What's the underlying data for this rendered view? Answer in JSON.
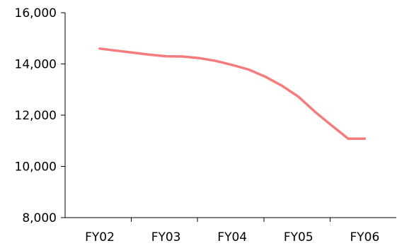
{
  "chart_data": {
    "type": "line",
    "title": "",
    "xlabel": "",
    "ylabel": "",
    "categories": [
      "FY02",
      "FY03",
      "FY04",
      "FY05",
      "FY06"
    ],
    "ylim": [
      8000,
      16000
    ],
    "yticks": [
      8000,
      10000,
      12000,
      14000,
      16000
    ],
    "ytick_labels": [
      "8,000",
      "10,000",
      "12,000",
      "14,000",
      "16,000"
    ],
    "grid": false,
    "legend": "none",
    "series": [
      {
        "color": "#f47c7c",
        "x": [
          0,
          0.25,
          0.5,
          0.75,
          1.0,
          1.25,
          1.5,
          1.75,
          2.0,
          2.25,
          2.5,
          2.75,
          3.0,
          3.25,
          3.5,
          3.75,
          4.0
        ],
        "values": [
          14600,
          14520,
          14440,
          14360,
          14300,
          14290,
          14230,
          14120,
          13960,
          13780,
          13500,
          13150,
          12720,
          12130,
          11600,
          11080,
          11080
        ]
      }
    ]
  }
}
